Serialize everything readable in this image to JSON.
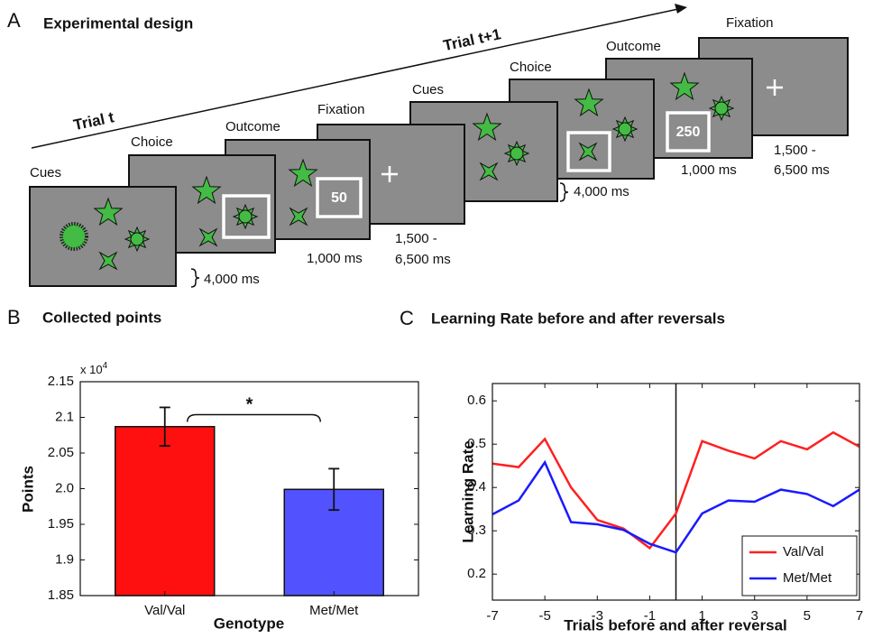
{
  "panel_a": {
    "label": "A",
    "title": "Experimental design",
    "trials": [
      {
        "label": "Trial t",
        "screens": [
          {
            "name": "Cues"
          },
          {
            "name": "Choice",
            "duration": "4,000 ms"
          },
          {
            "name": "Outcome",
            "points": "50",
            "duration": "1,000 ms"
          },
          {
            "name": "Fixation",
            "duration": [
              "1,500 -",
              "6,500 ms"
            ]
          }
        ]
      },
      {
        "label": "Trial t+1",
        "screens": [
          {
            "name": "Cues"
          },
          {
            "name": "Choice",
            "duration": "4,000 ms"
          },
          {
            "name": "Outcome",
            "points": "250",
            "duration": "1,000 ms"
          },
          {
            "name": "Fixation",
            "duration": [
              "1,500 -",
              "6,500 ms"
            ]
          }
        ]
      }
    ]
  },
  "chart_data": [
    {
      "type": "bar",
      "panel_label": "B",
      "title": "Collected points",
      "x_label": "Genotype",
      "y_label": "Points",
      "y_multiplier": "x 10",
      "y_multiplier_exponent": "4",
      "categories": [
        "Val/Val",
        "Met/Met"
      ],
      "values": [
        2.087,
        1.999
      ],
      "errors": [
        0.027,
        0.029
      ],
      "colors": [
        "#ff1010",
        "#5252ff"
      ],
      "significance_label": "*",
      "ylim": [
        1.85,
        2.15
      ],
      "yticks": [
        1.85,
        1.9,
        1.95,
        {
          "value": 2,
          "label": "2.0"
        },
        2.05,
        2.1,
        2.15
      ]
    },
    {
      "type": "line",
      "panel_label": "C",
      "title": "Learning Rate before and after reversals",
      "x_label": "Trials before and after reversal",
      "y_label": "Learning Rate",
      "x": [
        -7,
        -6,
        -5,
        -4,
        -3,
        -2,
        -1,
        0,
        1,
        2,
        3,
        4,
        5,
        6,
        7
      ],
      "series": [
        {
          "name": "Val/Val",
          "color": "#ff2020",
          "values": [
            0.455,
            0.447,
            0.512,
            0.4,
            0.325,
            0.305,
            0.26,
            0.34,
            0.507,
            0.485,
            0.467,
            0.507,
            0.488,
            0.527,
            0.494
          ]
        },
        {
          "name": "Met/Met",
          "color": "#1a1aff",
          "values": [
            0.338,
            0.37,
            0.458,
            0.32,
            0.315,
            0.302,
            0.27,
            0.25,
            0.34,
            0.37,
            0.367,
            0.395,
            0.385,
            0.357,
            0.395
          ]
        }
      ],
      "vline_x": 0,
      "legend": "lower right",
      "xlim": [
        -7,
        7
      ],
      "xticks": [
        -7,
        -5,
        -3,
        -1,
        1,
        3,
        5,
        7
      ],
      "ylim": [
        0.14,
        0.64
      ],
      "yticks": [
        0.2,
        0.3,
        0.4,
        0.5,
        0.6
      ]
    }
  ]
}
